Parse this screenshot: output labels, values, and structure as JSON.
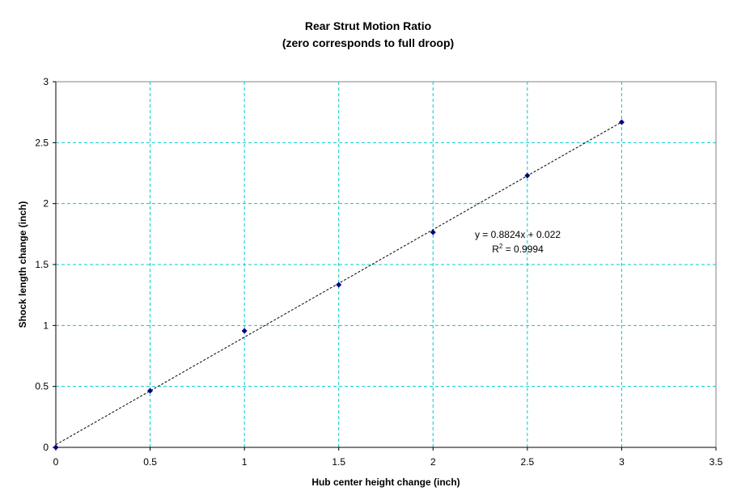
{
  "chart_data": {
    "type": "scatter",
    "title": "Rear Strut Motion Ratio",
    "subtitle": "(zero corresponds to full droop)",
    "xlabel": "Hub center height change (inch)",
    "ylabel": "Shock length change (inch)",
    "xlim": [
      0,
      3.5
    ],
    "ylim": [
      0,
      3
    ],
    "xticks": [
      0,
      0.5,
      1,
      1.5,
      2,
      2.5,
      3,
      3.5
    ],
    "yticks": [
      0,
      0.5,
      1,
      1.5,
      2,
      2.5,
      3
    ],
    "xtick_labels": [
      "0",
      "0.5",
      "1",
      "1.5",
      "2",
      "2.5",
      "3",
      "3.5"
    ],
    "ytick_labels": [
      "0",
      "0.5",
      "1",
      "1.5",
      "2",
      "2.5",
      "3"
    ],
    "grid": true,
    "series": [
      {
        "name": "Shock length change",
        "x": [
          0,
          0.5,
          1,
          1.5,
          2,
          2.5,
          3
        ],
        "y": [
          0,
          0.465,
          0.956,
          1.334,
          1.765,
          2.23,
          2.668
        ],
        "color": "#000080"
      }
    ],
    "trendline": {
      "slope": 0.8824,
      "intercept": 0.022,
      "equation": "y = 0.8824x + 0.022",
      "r2_label": "R",
      "r2_sup": "2",
      "r2_value": " = 0.9994"
    },
    "colors": {
      "grid": "#00CCCC",
      "marker": "#000080",
      "trend": "#000000"
    }
  }
}
